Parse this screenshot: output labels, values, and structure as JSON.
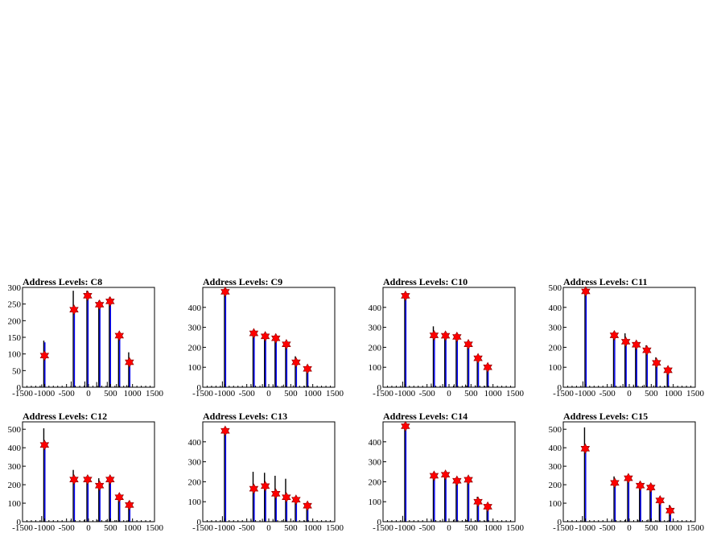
{
  "colors": {
    "histogram_black": "#000000",
    "histogram_blue": "#0000ff",
    "marker": "#ff0000"
  },
  "marker_icon": "red-star-marker",
  "chart_data": [
    {
      "type": "bar",
      "title": "Address Levels: C8",
      "xlim": [
        -1500,
        1500
      ],
      "ylim": [
        0,
        300
      ],
      "xticks": [
        "-1500",
        "-1000",
        "-500",
        "0",
        "500",
        "1000",
        "1500"
      ],
      "yticks": [
        "0",
        "50",
        "100",
        "150",
        "200",
        "250",
        "300"
      ],
      "peaks": [
        [
          -1000,
          140,
          135
        ],
        [
          -330,
          290,
          230
        ],
        [
          -20,
          290,
          272
        ],
        [
          250,
          260,
          248
        ],
        [
          490,
          270,
          258
        ],
        [
          700,
          160,
          155
        ],
        [
          930,
          105,
          75
        ]
      ],
      "markers": [
        [
          -1000,
          95
        ],
        [
          -330,
          233
        ],
        [
          -20,
          275
        ],
        [
          250,
          248
        ],
        [
          490,
          258
        ],
        [
          700,
          155
        ],
        [
          930,
          75
        ]
      ]
    },
    {
      "type": "bar",
      "title": "Address Levels: C9",
      "xlim": [
        -1500,
        1500
      ],
      "ylim": [
        0,
        500
      ],
      "xticks": [
        "-1500",
        "-1000",
        "-500",
        "0",
        "500",
        "1000",
        "1500"
      ],
      "yticks": [
        "0",
        "100",
        "200",
        "300",
        "400"
      ],
      "peaks": [
        [
          -990,
          490,
          478
        ],
        [
          -340,
          270,
          265
        ],
        [
          -80,
          260,
          255
        ],
        [
          160,
          250,
          240
        ],
        [
          400,
          220,
          210
        ],
        [
          620,
          155,
          130
        ],
        [
          880,
          100,
          90
        ]
      ],
      "markers": [
        [
          -990,
          478
        ],
        [
          -340,
          270
        ],
        [
          -80,
          255
        ],
        [
          160,
          245
        ],
        [
          400,
          215
        ],
        [
          620,
          125
        ],
        [
          880,
          92
        ]
      ]
    },
    {
      "type": "bar",
      "title": "Address Levels: C10",
      "xlim": [
        -1500,
        1500
      ],
      "ylim": [
        0,
        500
      ],
      "xticks": [
        "-1500",
        "-1000",
        "-500",
        "0",
        "500",
        "1000",
        "1500"
      ],
      "yticks": [
        "0",
        "100",
        "200",
        "300",
        "400"
      ],
      "peaks": [
        [
          -990,
          470,
          460
        ],
        [
          -340,
          305,
          255
        ],
        [
          -80,
          265,
          260
        ],
        [
          180,
          255,
          250
        ],
        [
          440,
          225,
          215
        ],
        [
          660,
          155,
          145
        ],
        [
          880,
          100,
          100
        ]
      ],
      "markers": [
        [
          -990,
          458
        ],
        [
          -340,
          260
        ],
        [
          -80,
          258
        ],
        [
          180,
          252
        ],
        [
          440,
          215
        ],
        [
          660,
          145
        ],
        [
          880,
          100
        ]
      ]
    },
    {
      "type": "bar",
      "title": "Address Levels: C11",
      "xlim": [
        -1500,
        1500
      ],
      "ylim": [
        0,
        500
      ],
      "xticks": [
        "-1500",
        "-1000",
        "-500",
        "0",
        "500",
        "1000",
        "1500"
      ],
      "yticks": [
        "0",
        "100",
        "200",
        "300",
        "400",
        "500"
      ],
      "peaks": [
        [
          -990,
          490,
          480
        ],
        [
          -340,
          275,
          265
        ],
        [
          -80,
          270,
          230
        ],
        [
          160,
          220,
          210
        ],
        [
          400,
          210,
          185
        ],
        [
          620,
          150,
          125
        ],
        [
          880,
          95,
          85
        ]
      ],
      "markers": [
        [
          -990,
          480
        ],
        [
          -340,
          260
        ],
        [
          -80,
          228
        ],
        [
          160,
          213
        ],
        [
          400,
          185
        ],
        [
          620,
          122
        ],
        [
          880,
          85
        ]
      ]
    },
    {
      "type": "bar",
      "title": "Address Levels: C12",
      "xlim": [
        -1500,
        1500
      ],
      "ylim": [
        0,
        540
      ],
      "xticks": [
        "-1500",
        "-1000",
        "-500",
        "0",
        "500",
        "1000",
        "1500"
      ],
      "yticks": [
        "0",
        "100",
        "200",
        "300",
        "400",
        "500"
      ],
      "peaks": [
        [
          -1000,
          505,
          420
        ],
        [
          -330,
          280,
          230
        ],
        [
          -20,
          225,
          230
        ],
        [
          250,
          235,
          195
        ],
        [
          490,
          240,
          230
        ],
        [
          700,
          145,
          135
        ],
        [
          930,
          110,
          90
        ]
      ],
      "markers": [
        [
          -1000,
          415
        ],
        [
          -330,
          228
        ],
        [
          -20,
          228
        ],
        [
          250,
          195
        ],
        [
          490,
          228
        ],
        [
          700,
          132
        ],
        [
          930,
          90
        ]
      ]
    },
    {
      "type": "bar",
      "title": "Address Levels: C13",
      "xlim": [
        -1500,
        1500
      ],
      "ylim": [
        0,
        500
      ],
      "xticks": [
        "-1500",
        "-1000",
        "-500",
        "0",
        "500",
        "1000",
        "1500"
      ],
      "yticks": [
        "0",
        "100",
        "200",
        "300",
        "400"
      ],
      "peaks": [
        [
          -990,
          460,
          455
        ],
        [
          -340,
          250,
          165
        ],
        [
          -80,
          245,
          180
        ],
        [
          160,
          230,
          140
        ],
        [
          400,
          215,
          125
        ],
        [
          620,
          120,
          110
        ],
        [
          880,
          95,
          80
        ]
      ],
      "markers": [
        [
          -990,
          455
        ],
        [
          -340,
          165
        ],
        [
          -80,
          178
        ],
        [
          160,
          140
        ],
        [
          400,
          122
        ],
        [
          620,
          110
        ],
        [
          880,
          80
        ]
      ]
    },
    {
      "type": "bar",
      "title": "Address Levels: C14",
      "xlim": [
        -1500,
        1500
      ],
      "ylim": [
        0,
        500
      ],
      "xticks": [
        "-1500",
        "-1000",
        "-500",
        "0",
        "500",
        "1000",
        "1500"
      ],
      "yticks": [
        "0",
        "100",
        "200",
        "300",
        "400"
      ],
      "peaks": [
        [
          -990,
          485,
          478
        ],
        [
          -340,
          235,
          228
        ],
        [
          -80,
          235,
          235
        ],
        [
          180,
          215,
          205
        ],
        [
          440,
          220,
          210
        ],
        [
          660,
          125,
          100
        ],
        [
          880,
          80,
          75
        ]
      ],
      "markers": [
        [
          -990,
          478
        ],
        [
          -340,
          230
        ],
        [
          -80,
          235
        ],
        [
          180,
          205
        ],
        [
          440,
          210
        ],
        [
          660,
          100
        ],
        [
          880,
          75
        ]
      ]
    },
    {
      "type": "bar",
      "title": "Address Levels: C15",
      "xlim": [
        -1500,
        1500
      ],
      "ylim": [
        0,
        540
      ],
      "xticks": [
        "-1500",
        "-1000",
        "-500",
        "0",
        "500",
        "1000",
        "1500"
      ],
      "yticks": [
        "0",
        "100",
        "200",
        "300",
        "400",
        "500"
      ],
      "peaks": [
        [
          -1000,
          510,
          400
        ],
        [
          -330,
          245,
          210
        ],
        [
          -20,
          235,
          235
        ],
        [
          250,
          215,
          195
        ],
        [
          490,
          200,
          185
        ],
        [
          700,
          120,
          115
        ],
        [
          930,
          90,
          60
        ]
      ],
      "markers": [
        [
          -1000,
          395
        ],
        [
          -330,
          210
        ],
        [
          -20,
          235
        ],
        [
          250,
          195
        ],
        [
          490,
          185
        ],
        [
          700,
          115
        ],
        [
          930,
          60
        ]
      ]
    }
  ]
}
